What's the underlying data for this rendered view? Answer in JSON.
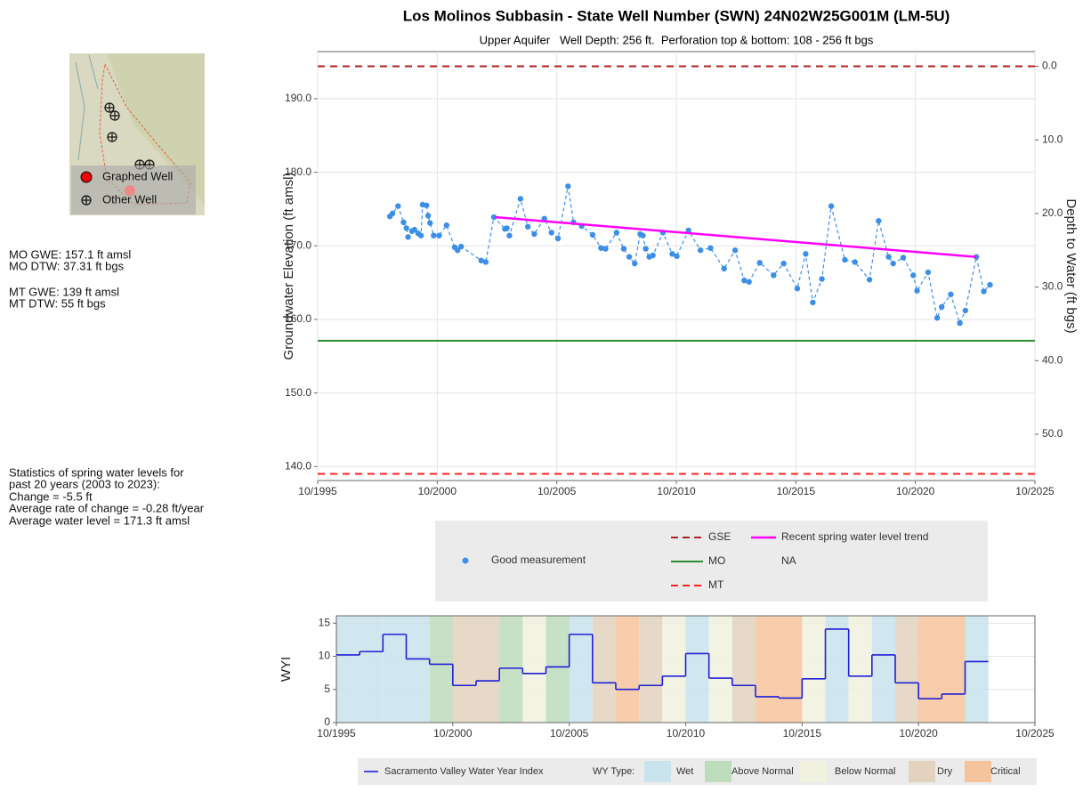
{
  "sidebar": {
    "mo": [
      "MO GWE: 157.1 ft amsl",
      "MO DTW: 37.31 ft bgs"
    ],
    "mt": [
      "MT GWE: 139 ft amsl",
      "MT DTW: 55 ft bgs"
    ],
    "stats": [
      "Statistics of spring water levels for",
      "past 20 years (2003 to 2023):",
      "Change = -5.5 ft",
      "Average rate of change = -0.28 ft/year",
      "Average water level = 171.3 ft amsl"
    ]
  },
  "map": {
    "legend": [
      "Graphed Well",
      "Other Well"
    ]
  },
  "chart_data": [
    {
      "type": "line",
      "title": "Los Molinos Subbasin - State Well Number (SWN) 24N02W25G001M (LM-5U)",
      "subtitle": "Upper Aquifer   Well Depth: 256 ft.  Perforation top & bottom: 108 - 256 ft bgs",
      "ylabel": "Groundwater Elevation (ft amsl)",
      "y2label": "Depth to Water (ft bgs)",
      "xlim": [
        1995.75,
        2025.75
      ],
      "xticks": [
        {
          "value": 1995.75,
          "label": "10/1995"
        },
        {
          "value": 2000.75,
          "label": "10/2000"
        },
        {
          "value": 2005.75,
          "label": "10/2005"
        },
        {
          "value": 2010.75,
          "label": "10/2010"
        },
        {
          "value": 2015.75,
          "label": "10/2015"
        },
        {
          "value": 2020.75,
          "label": "10/2020"
        },
        {
          "value": 2025.75,
          "label": "10/2025"
        }
      ],
      "ylim": [
        138.1,
        196.4
      ],
      "yticks": [
        {
          "value": 140,
          "label": "140.0"
        },
        {
          "value": 150,
          "label": "150.0"
        },
        {
          "value": 160,
          "label": "160.0"
        },
        {
          "value": 170,
          "label": "170.0"
        },
        {
          "value": 180,
          "label": "180.0"
        },
        {
          "value": 190,
          "label": "190.0"
        }
      ],
      "y2lim": [
        56.3,
        -2.0
      ],
      "y2ticks": [
        {
          "value": 0,
          "label": "0.0"
        },
        {
          "value": 10,
          "label": "10.0"
        },
        {
          "value": 20,
          "label": "20.0"
        },
        {
          "value": 30,
          "label": "30.0"
        },
        {
          "value": 40,
          "label": "40.0"
        },
        {
          "value": 50,
          "label": "50.0"
        }
      ],
      "grid": true,
      "series": [
        {
          "name": "Good measurement",
          "color": "#3b8fe8",
          "linestyle": "dashed",
          "markers": true,
          "x": [
            1998.77,
            1998.88,
            1999.11,
            1999.34,
            1999.46,
            1999.53,
            1999.69,
            1999.8,
            1999.95,
            2000.07,
            2000.14,
            2000.3,
            2000.37,
            2000.45,
            2000.6,
            2000.83,
            2001.14,
            2001.48,
            2001.6,
            2001.75,
            2002.59,
            2002.78,
            2003.12,
            2003.58,
            2003.66,
            2003.77,
            2004.23,
            2004.54,
            2004.81,
            2005.23,
            2005.53,
            2005.8,
            2006.22,
            2006.45,
            2006.79,
            2007.25,
            2007.6,
            2007.79,
            2008.25,
            2008.55,
            2008.78,
            2009.01,
            2009.24,
            2009.35,
            2009.47,
            2009.62,
            2009.77,
            2010.19,
            2010.58,
            2010.77,
            2011.26,
            2011.76,
            2012.18,
            2012.75,
            2013.21,
            2013.59,
            2013.79,
            2014.24,
            2014.82,
            2015.24,
            2015.81,
            2016.16,
            2016.46,
            2016.84,
            2017.23,
            2017.8,
            2018.22,
            2018.83,
            2019.21,
            2019.63,
            2019.82,
            2020.24,
            2020.66,
            2020.82,
            2021.28,
            2021.66,
            2021.85,
            2022.23,
            2022.61,
            2022.84,
            2023.3,
            2023.61,
            2023.87
          ],
          "values": [
            174.0,
            174.4,
            175.4,
            173.2,
            172.4,
            171.2,
            172.0,
            172.2,
            171.7,
            171.4,
            175.6,
            175.5,
            174.1,
            173.1,
            171.4,
            171.4,
            172.8,
            169.8,
            169.4,
            169.9,
            168.0,
            167.8,
            173.9,
            172.3,
            172.4,
            171.4,
            176.4,
            172.6,
            171.6,
            173.7,
            171.8,
            171.0,
            178.1,
            173.2,
            172.7,
            171.5,
            169.7,
            169.6,
            171.8,
            169.6,
            168.5,
            167.6,
            171.6,
            171.4,
            169.6,
            168.5,
            168.7,
            171.8,
            168.9,
            168.6,
            172.1,
            169.4,
            169.7,
            166.9,
            169.4,
            165.3,
            165.1,
            167.7,
            166.0,
            167.6,
            164.2,
            168.9,
            162.3,
            165.5,
            175.4,
            168.1,
            167.8,
            165.4,
            173.4,
            168.5,
            167.6,
            168.4,
            166.0,
            163.9,
            166.4,
            160.2,
            161.7,
            163.4,
            159.5,
            161.2,
            168.5,
            163.8,
            164.7
          ]
        },
        {
          "name": "Recent spring water level trend",
          "color": "#ff00ff",
          "linestyle": "solid",
          "markers": false,
          "x": [
            2003.16,
            2023.3
          ],
          "values": [
            173.9,
            168.5
          ]
        }
      ],
      "hlines": [
        {
          "name": "GSE",
          "value": 194.4,
          "color": "#b22222",
          "linestyle": "dashed"
        },
        {
          "name": "MO",
          "value": 157.1,
          "color": "#2e8b2e",
          "linestyle": "solid"
        },
        {
          "name": "MT",
          "value": 139,
          "color": "#ff2020",
          "linestyle": "dashed"
        }
      ],
      "na_label": "NA"
    },
    {
      "type": "step",
      "ylabel": "WYI",
      "xlim": [
        1995,
        2025
      ],
      "xticks": [
        {
          "value": 1995,
          "label": "10/1995"
        },
        {
          "value": 2000,
          "label": "10/2000"
        },
        {
          "value": 2005,
          "label": "10/2005"
        },
        {
          "value": 2010,
          "label": "10/2010"
        },
        {
          "value": 2015,
          "label": "10/2015"
        },
        {
          "value": 2020,
          "label": "10/2020"
        },
        {
          "value": 2025,
          "label": "10/2025"
        }
      ],
      "ylim": [
        0,
        16.1
      ],
      "yticks": [
        0,
        5,
        10,
        15
      ],
      "grid": true,
      "series": [
        {
          "name": "Sacramento Valley Water Year Index",
          "color": "#1f1fd8",
          "x": [
            1995,
            1996,
            1997,
            1998,
            1999,
            2000,
            2001,
            2002,
            2003,
            2004,
            2005,
            2006,
            2007,
            2008,
            2009,
            2010,
            2011,
            2012,
            2013,
            2014,
            2015,
            2016,
            2017,
            2018,
            2019,
            2020,
            2021,
            2022
          ],
          "values": [
            10.2,
            10.7,
            13.3,
            9.6,
            8.8,
            5.6,
            6.3,
            8.2,
            7.4,
            8.4,
            13.3,
            6.0,
            5.0,
            5.6,
            7.0,
            10.4,
            6.7,
            5.6,
            3.9,
            3.7,
            6.6,
            14.1,
            7.0,
            10.2,
            6.0,
            3.6,
            4.3,
            9.2
          ]
        }
      ],
      "year_types": [
        "Wet",
        "Wet",
        "Wet",
        "Wet",
        "Above Normal",
        "Dry",
        "Dry",
        "Above Normal",
        "Below Normal",
        "Above Normal",
        "Wet",
        "Dry",
        "Critical",
        "Dry",
        "Below Normal",
        "Wet",
        "Below Normal",
        "Dry",
        "Critical",
        "Critical",
        "Below Normal",
        "Wet",
        "Below Normal",
        "Wet",
        "Dry",
        "Critical",
        "Critical",
        "Wet"
      ],
      "legend_title": "WY Type:",
      "types": [
        {
          "name": "Wet",
          "color": "#c9e3ec"
        },
        {
          "name": "Above Normal",
          "color": "#bcdcbc"
        },
        {
          "name": "Below Normal",
          "color": "#f1f1df"
        },
        {
          "name": "Dry",
          "color": "#e3d2bd"
        },
        {
          "name": "Critical",
          "color": "#f6c49c"
        }
      ]
    }
  ]
}
